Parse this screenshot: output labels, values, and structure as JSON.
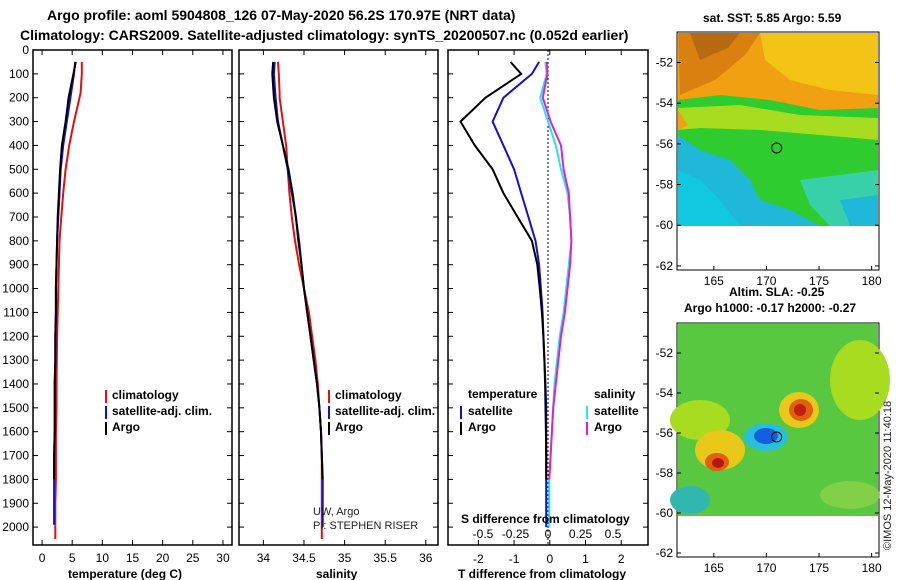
{
  "header": {
    "line1": "Argo profile: aoml 5904808_126 07-May-2020 56.2S 170.97E (NRT data)",
    "line2": "Climatology: CARS2009. Satellite-adjusted climatology: synTS_20200507.nc (0.052d earlier)"
  },
  "chart_data": [
    {
      "type": "line",
      "name": "temperature",
      "xlabel": "temperature (deg C)",
      "xlim": [
        -1.5,
        31.5
      ],
      "xticks": [
        0,
        5,
        10,
        15,
        20,
        25,
        30
      ],
      "ylim": [
        0,
        2075
      ],
      "yticks": [
        0,
        100,
        200,
        300,
        400,
        500,
        600,
        700,
        800,
        900,
        1000,
        1100,
        1200,
        1300,
        1400,
        1500,
        1600,
        1700,
        1800,
        1900,
        2000
      ],
      "series": [
        {
          "name": "climatology",
          "color": "#e01010",
          "x": [
            6.6,
            6.6,
            6.4,
            5.3,
            4.5,
            3.9,
            3.5,
            3.2,
            2.9,
            2.8,
            2.7,
            2.6,
            2.5,
            2.45,
            2.4,
            2.4,
            2.3,
            2.3,
            2.3,
            2.2,
            2.2
          ],
          "y": [
            50,
            100,
            180,
            300,
            400,
            500,
            600,
            700,
            800,
            900,
            1000,
            1100,
            1200,
            1300,
            1400,
            1500,
            1600,
            1700,
            1800,
            1900,
            2050
          ]
        },
        {
          "name": "satellite-adj. clim.",
          "color": "#1010d0",
          "x": [
            5.5,
            5.3,
            4.7,
            4.1,
            3.5,
            3.1,
            2.9,
            2.7,
            2.5,
            2.4,
            2.3,
            2.3,
            2.2,
            2.2,
            2.1,
            2.1,
            2.1,
            2.0,
            2.0,
            2.0
          ],
          "y": [
            50,
            100,
            200,
            300,
            400,
            500,
            600,
            700,
            800,
            900,
            1000,
            1100,
            1200,
            1300,
            1400,
            1500,
            1600,
            1700,
            1800,
            1990
          ]
        },
        {
          "name": "Argo",
          "color": "#000000",
          "x": [
            5.6,
            5.2,
            4.4,
            3.9,
            3.3,
            3.0,
            2.8,
            2.6,
            2.5,
            2.4,
            2.3,
            2.3,
            2.2,
            2.2,
            2.1,
            2.1,
            2.1,
            2.0,
            2.0
          ],
          "y": [
            50,
            100,
            200,
            300,
            400,
            500,
            600,
            700,
            800,
            900,
            1000,
            1100,
            1200,
            1300,
            1400,
            1500,
            1600,
            1700,
            1800
          ]
        }
      ]
    },
    {
      "type": "line",
      "name": "salinity",
      "xlabel": "salinity",
      "xlim": [
        33.7,
        36.15
      ],
      "xticks": [
        34,
        34.5,
        35,
        35.5,
        36
      ],
      "ylim": [
        0,
        2075
      ],
      "series": [
        {
          "name": "climatology",
          "color": "#e01010",
          "x": [
            34.18,
            34.19,
            34.2,
            34.2,
            34.24,
            34.28,
            34.3,
            34.32,
            34.35,
            34.39,
            34.44,
            34.5,
            34.56,
            34.6,
            34.64,
            34.67,
            34.69,
            34.71,
            34.72,
            34.72,
            34.72
          ],
          "y": [
            50,
            100,
            180,
            200,
            300,
            400,
            500,
            600,
            700,
            800,
            900,
            1000,
            1100,
            1200,
            1300,
            1400,
            1500,
            1600,
            1700,
            1800,
            2050
          ]
        },
        {
          "name": "satellite-adj. clim.",
          "color": "#1010d0",
          "x": [
            34.14,
            34.13,
            34.15,
            34.18,
            34.24,
            34.3,
            34.35,
            34.4,
            34.44,
            34.47,
            34.5,
            34.54,
            34.58,
            34.62,
            34.66,
            34.69,
            34.71,
            34.72,
            34.73,
            34.73
          ],
          "y": [
            50,
            100,
            200,
            300,
            400,
            500,
            600,
            700,
            800,
            900,
            1000,
            1100,
            1200,
            1300,
            1400,
            1500,
            1600,
            1700,
            1800,
            2000
          ]
        },
        {
          "name": "Argo",
          "color": "#000000",
          "x": [
            34.12,
            34.11,
            34.13,
            34.17,
            34.24,
            34.31,
            34.36,
            34.4,
            34.43,
            34.47,
            34.5,
            34.54,
            34.58,
            34.62,
            34.66,
            34.69,
            34.71,
            34.72,
            34.73
          ],
          "y": [
            50,
            100,
            200,
            300,
            400,
            500,
            600,
            700,
            800,
            900,
            1000,
            1100,
            1200,
            1300,
            1400,
            1500,
            1600,
            1700,
            1800
          ]
        }
      ]
    },
    {
      "type": "line",
      "name": "difference from climatology",
      "xlabel": "T difference from climatology",
      "top_xticks": [
        -2,
        -1,
        0,
        1,
        2
      ],
      "bottom_scale_label": "S difference from climatology",
      "bottom_ticks": [
        -0.5,
        -0.25,
        0,
        0.25,
        0.5
      ],
      "xlim": [
        -2.85,
        2.75
      ],
      "ylim": [
        0,
        2075
      ],
      "legend_left_title": "temperature",
      "legend_right_title": "salinity",
      "series": [
        {
          "name": "T satellite",
          "color": "#1010d0",
          "x": [
            -0.3,
            -0.5,
            -1.3,
            -1.6,
            -1.3,
            -1.0,
            -0.8,
            -0.6,
            -0.4,
            -0.3,
            -0.25,
            -0.2,
            -0.18,
            -0.15,
            -0.12,
            -0.1,
            -0.1,
            -0.1,
            -0.1,
            -0.1
          ],
          "y": [
            50,
            100,
            200,
            300,
            400,
            500,
            600,
            700,
            800,
            900,
            1000,
            1100,
            1200,
            1300,
            1400,
            1500,
            1600,
            1700,
            1800,
            2000
          ]
        },
        {
          "name": "T Argo",
          "color": "#000000",
          "x": [
            -1.1,
            -0.8,
            -1.8,
            -2.5,
            -2.1,
            -1.6,
            -1.3,
            -0.9,
            -0.5,
            -0.35,
            -0.28,
            -0.22,
            -0.18,
            -0.15,
            -0.13,
            -0.12,
            -0.11,
            -0.1,
            -0.1
          ],
          "y": [
            50,
            100,
            200,
            300,
            400,
            500,
            600,
            700,
            800,
            900,
            1000,
            1100,
            1200,
            1300,
            1400,
            1500,
            1600,
            1700,
            1800
          ]
        },
        {
          "name": "S satellite",
          "color": "#20e8e8",
          "x": [
            -0.02,
            -0.01,
            -0.06,
            0.0,
            0.06,
            0.1,
            0.15,
            0.17,
            0.18,
            0.16,
            0.14,
            0.12,
            0.09,
            0.07,
            0.05,
            0.04,
            0.03,
            0.02,
            0.01,
            0.01
          ],
          "y": [
            50,
            100,
            200,
            300,
            400,
            500,
            600,
            700,
            800,
            900,
            1000,
            1100,
            1200,
            1300,
            1400,
            1500,
            1600,
            1700,
            1800,
            2000
          ]
        },
        {
          "name": "S Argo",
          "color": "#e020d0",
          "x": [
            -0.01,
            -0.005,
            -0.04,
            0.02,
            0.1,
            0.12,
            0.16,
            0.17,
            0.18,
            0.17,
            0.15,
            0.13,
            0.1,
            0.08,
            0.06,
            0.04,
            0.03,
            0.02,
            0.01
          ],
          "y": [
            50,
            100,
            200,
            300,
            400,
            500,
            600,
            700,
            800,
            900,
            1000,
            1100,
            1200,
            1300,
            1400,
            1500,
            1600,
            1700,
            1800
          ]
        }
      ]
    }
  ],
  "legend": {
    "climatology": "climatology",
    "satellite": "satellite-adj. clim.",
    "argo": "Argo",
    "t_title": "temperature",
    "s_title": "salinity",
    "sat_short": "satellite",
    "argo_short": "Argo"
  },
  "credits": {
    "line1": "UW, Argo",
    "line2": "PI: STEPHEN RISER"
  },
  "maps": {
    "sst_title": "sat. SST: 5.85 Argo: 5.59",
    "sla_title1": "Altim. SLA: -0.25",
    "sla_title2": "Argo h1000: -0.17 h2000: -0.27",
    "lat_ticks": [
      -52,
      -54,
      -56,
      -58,
      -60,
      -62
    ],
    "lon_ticks": [
      165,
      170,
      175,
      180
    ],
    "float_lon": 170.97,
    "float_lat": -56.2
  },
  "watermark": "©IMOS 12-May-2020 11:40:18",
  "colors": {
    "clim": "#e01010",
    "sat": "#1010d0",
    "argo": "#000000",
    "s_sat": "#20e8e8",
    "s_argo": "#e020d0"
  }
}
